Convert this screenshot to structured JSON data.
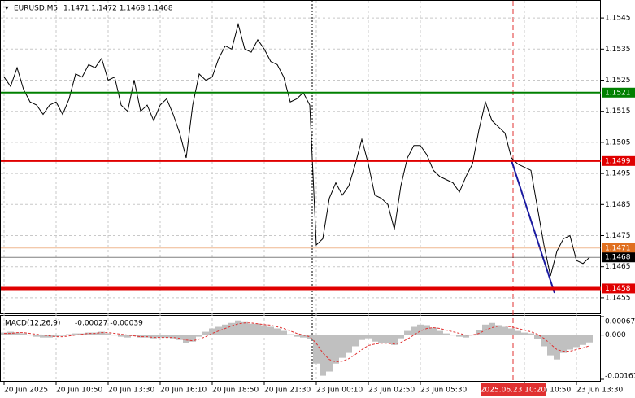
{
  "chart_data": [
    {
      "type": "line",
      "title": "EURUSD,M5",
      "subtitle": "1.1471 1.1472 1.1468 1.1468",
      "annotation": "2025.06.23 10:20",
      "categories": [
        "20 Jun 2025",
        null,
        null,
        null,
        null,
        null,
        null,
        null,
        "20 Jun 10:50",
        null,
        null,
        null,
        null,
        null,
        null,
        null,
        "20 Jun 13:30",
        null,
        null,
        null,
        null,
        null,
        null,
        null,
        "20 Jun 16:10",
        null,
        null,
        null,
        null,
        null,
        null,
        null,
        "20 Jun 18:50",
        null,
        null,
        null,
        null,
        null,
        null,
        null,
        "20 Jun 21:30",
        null,
        null,
        null,
        null,
        null,
        null,
        null,
        "23 Jun 00:10",
        null,
        null,
        null,
        null,
        null,
        null,
        null,
        "23 Jun 02:50",
        null,
        null,
        null,
        null,
        null,
        null,
        null,
        "23 Jun 05:30",
        null,
        null,
        null,
        null,
        null,
        null,
        null,
        null,
        null,
        null,
        null,
        null,
        null,
        null,
        null,
        "23 Jun 10:50",
        null,
        null,
        null,
        null,
        null,
        null,
        null,
        "23 Jun 13:30",
        null,
        null
      ],
      "values": [
        1.1526,
        1.1523,
        1.1529,
        1.1522,
        1.1518,
        1.1517,
        1.1514,
        1.1517,
        1.1518,
        1.1514,
        1.1519,
        1.1527,
        1.1526,
        1.153,
        1.1529,
        1.1532,
        1.1525,
        1.1526,
        1.1517,
        1.1515,
        1.1525,
        1.1515,
        1.1517,
        1.1512,
        1.1517,
        1.1519,
        1.1514,
        1.1508,
        1.15,
        1.1517,
        1.1527,
        1.1525,
        1.1526,
        1.1532,
        1.1536,
        1.1535,
        1.1543,
        1.1535,
        1.1534,
        1.1538,
        1.1535,
        1.1531,
        1.153,
        1.1526,
        1.1518,
        1.1519,
        1.1521,
        1.1517,
        1.1472,
        1.1474,
        1.1487,
        1.1492,
        1.1488,
        1.1491,
        1.1498,
        1.1506,
        1.1498,
        1.1488,
        1.1487,
        1.1485,
        1.1477,
        1.1491,
        1.15,
        1.1504,
        1.1504,
        1.1501,
        1.1496,
        1.1494,
        1.1493,
        1.1492,
        1.1489,
        1.1494,
        1.1498,
        1.1509,
        1.1518,
        1.1512,
        1.151,
        1.1508,
        1.15,
        1.1498,
        1.1497,
        1.1496,
        1.1484,
        1.1472,
        1.1462,
        1.147,
        1.1474,
        1.1475,
        1.1467,
        1.1466,
        1.1468
      ],
      "color": "#000000",
      "ylim": [
        1.145,
        1.155
      ],
      "yticks": [
        1.1545,
        1.1535,
        1.1525,
        1.1515,
        1.1505,
        1.1495,
        1.1485,
        1.1475,
        1.1465,
        1.1455
      ],
      "grid": true,
      "levels": [
        {
          "value": 1.1521,
          "color": "#008000",
          "width": 2
        },
        {
          "value": 1.1499,
          "color": "#e00000",
          "width": 2
        },
        {
          "value": 1.1471,
          "color": "#e07020",
          "width": 1
        },
        {
          "value": 1.1468,
          "color": "#000000",
          "width": 1
        },
        {
          "value": 1.1458,
          "color": "#e00000",
          "width": 4
        }
      ]
    },
    {
      "type": "bar",
      "title": "MACD(12,26,9)",
      "subtitle": "-0.00027 -0.00039",
      "ylim": [
        -0.00161,
        0.00067
      ],
      "yticks": [
        0.00067,
        {
          "value": 0,
          "label": "0.000"
        },
        -0.00161
      ],
      "series": [
        {
          "color": "#c0c0c0",
          "values": [
            9e-05,
            0.00012,
            9e-05,
            6e-05,
            0,
            -6e-05,
            -9e-05,
            -9e-05,
            -6e-05,
            -3e-05,
            3e-05,
            6e-05,
            6e-05,
            9e-05,
            9e-05,
            0.00012,
            6e-05,
            0,
            -6e-05,
            -9e-05,
            -3e-05,
            -9e-05,
            -9e-05,
            -0.00012,
            -9e-05,
            -9e-05,
            -0.00012,
            -0.00018,
            -0.0003,
            -0.00024,
            -6e-05,
            0.00012,
            0.00024,
            0.0003,
            0.00038,
            0.00044,
            0.00053,
            0.00047,
            0.00041,
            0.00041,
            0.00036,
            0.0003,
            0.00024,
            0.00015,
            3e-05,
            -6e-05,
            -9e-05,
            -0.00015,
            -0.00104,
            -0.00148,
            -0.00133,
            -0.00104,
            -0.00083,
            -0.00065,
            -0.00041,
            -0.00018,
            -0.00012,
            -0.00024,
            -0.0003,
            -0.0003,
            -0.00036,
            -0.00012,
            0.00015,
            0.0003,
            0.00038,
            0.00036,
            0.00027,
            0.00015,
            6e-05,
            0,
            -6e-05,
            -9e-05,
            0,
            0.00018,
            0.00038,
            0.00044,
            0.00036,
            0.0003,
            0.00024,
            0.00015,
            9e-05,
            6e-05,
            -0.00015,
            -0.00041,
            -0.00074,
            -0.00089,
            -0.00065,
            -0.00053,
            -0.00044,
            -0.00036,
            -0.00027
          ]
        },
        {
          "color": "#e03030",
          "style": "line",
          "values": [
            6e-05,
            6e-05,
            9e-05,
            9e-05,
            6e-05,
            3e-05,
            0,
            -3e-05,
            -6e-05,
            -6e-05,
            -3e-05,
            0,
            3e-05,
            6e-05,
            6e-05,
            9e-05,
            9e-05,
            6e-05,
            3e-05,
            0,
            -3e-05,
            -6e-05,
            -6e-05,
            -9e-05,
            -9e-05,
            -9e-05,
            -9e-05,
            -0.00012,
            -0.00018,
            -0.00021,
            -0.00015,
            -6e-05,
            6e-05,
            0.00015,
            0.00024,
            0.00033,
            0.00041,
            0.00044,
            0.00044,
            0.00041,
            0.00038,
            0.00036,
            0.0003,
            0.00024,
            0.00015,
            6e-05,
            0,
            -6e-05,
            -0.0003,
            -0.00065,
            -0.00089,
            -0.00098,
            -0.00095,
            -0.00086,
            -0.00071,
            -0.00053,
            -0.00038,
            -0.00033,
            -0.0003,
            -0.0003,
            -0.00033,
            -0.00027,
            -0.00015,
            0,
            0.00015,
            0.00024,
            0.00027,
            0.00024,
            0.00018,
            0.00012,
            6e-05,
            0,
            0,
            6e-05,
            0.00018,
            0.00027,
            0.00033,
            0.00033,
            0.0003,
            0.00024,
            0.00018,
            0.00012,
            3e-05,
            -0.00012,
            -0.00033,
            -0.00053,
            -0.00059,
            -0.00059,
            -0.00053,
            -0.00047,
            -0.00039
          ]
        }
      ]
    }
  ]
}
